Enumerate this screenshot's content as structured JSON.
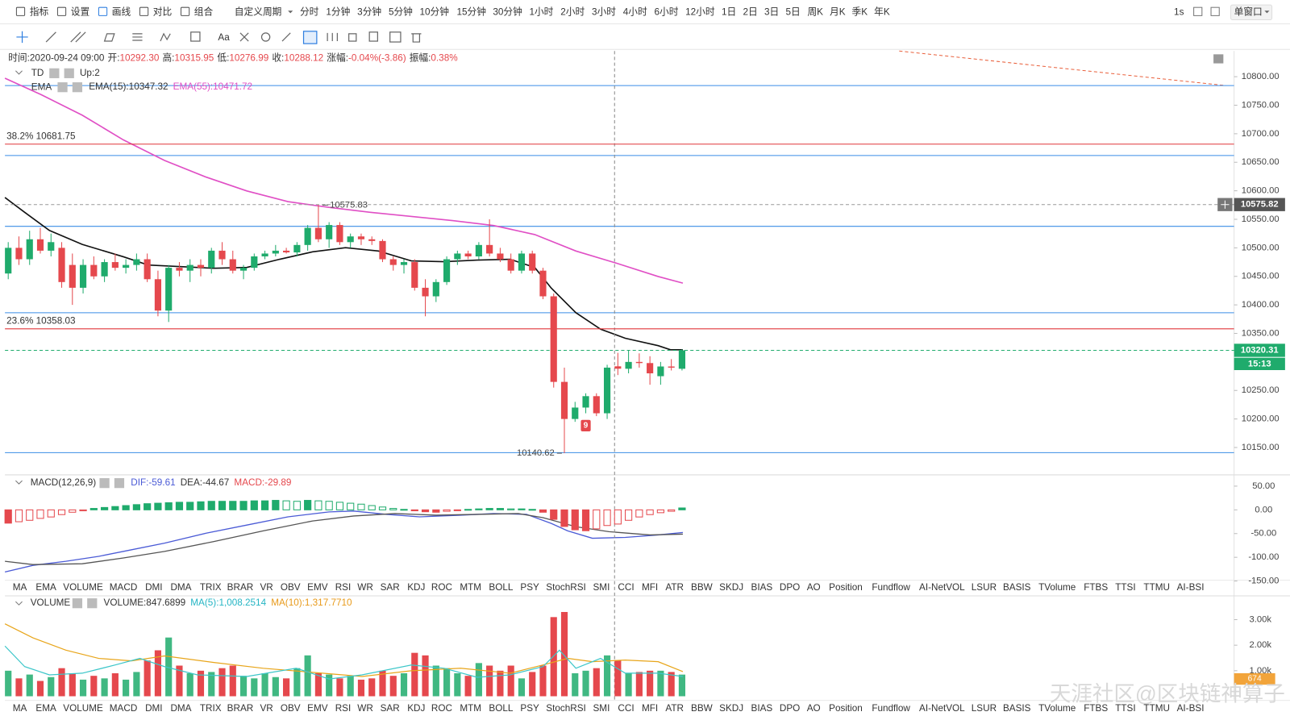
{
  "toolbar": {
    "left": [
      "指标",
      "设置",
      "画线",
      "对比",
      "组合"
    ],
    "period_menu": "自定义周期",
    "periods": [
      "分时",
      "1分钟",
      "3分钟",
      "5分钟",
      "10分钟",
      "15分钟",
      "30分钟",
      "1小时",
      "2小时",
      "3小时",
      "4小时",
      "6小时",
      "12小时",
      "1日",
      "2日",
      "3日",
      "5日",
      "周K",
      "月K",
      "季K",
      "年K"
    ],
    "active_period": 7,
    "right": [
      "1s",
      "单窗口"
    ]
  },
  "drawing_tools": {
    "text_tool": "Aa"
  },
  "info": [
    {
      "label": "时间:",
      "value": "2020-09-24 09:00"
    },
    {
      "label": "开:",
      "value": "10292.30"
    },
    {
      "label": "高:",
      "value": "10315.95"
    },
    {
      "label": "低:",
      "value": "10276.99"
    },
    {
      "label": "收:",
      "value": "10288.12"
    },
    {
      "label": "涨幅:",
      "value": "-0.04%(-3.86)"
    },
    {
      "label": "振幅:",
      "value": "0.38%"
    }
  ],
  "td_legend": {
    "name": "TD",
    "value": "Up:2"
  },
  "ema_legend": {
    "name": "EMA",
    "ema15": "EMA(15):10347.32",
    "ema55": "EMA(55):10471.72"
  },
  "price_chart": {
    "type": "candlestick",
    "ylim": [
      10115,
      10845
    ],
    "yticks": [
      {
        "value": 10150,
        "label": "10150.00"
      },
      {
        "value": 10200,
        "label": "10200.00"
      },
      {
        "value": 10250,
        "label": "10250.00"
      },
      {
        "value": 10300,
        "label": "10300.00"
      },
      {
        "value": 10350,
        "label": "10350.00"
      },
      {
        "value": 10400,
        "label": "10400.00"
      },
      {
        "value": 10450,
        "label": "10450.00"
      },
      {
        "value": 10500,
        "label": "10500.00"
      },
      {
        "value": 10550,
        "label": "10550.00"
      },
      {
        "value": 10600,
        "label": "10600.00"
      },
      {
        "value": 10650,
        "label": "10650.00"
      },
      {
        "value": 10700,
        "label": "10700.00"
      },
      {
        "value": 10750,
        "label": "10750.00"
      },
      {
        "value": 10800,
        "label": "10800.00"
      }
    ],
    "open": [
      10455,
      10500,
      10480,
      10515,
      10495,
      10500,
      10470,
      10430,
      10470,
      10450,
      10475,
      10465,
      10470,
      10480,
      10445,
      10390,
      10465,
      10460,
      10470,
      10465,
      10495,
      10480,
      10460,
      10465,
      10485,
      10490,
      10495,
      10492,
      10505,
      10535,
      10515,
      10540,
      10510,
      10520,
      10515,
      10512,
      10480,
      10470,
      10475,
      10430,
      10415,
      10440,
      10480,
      10490,
      10485,
      10505,
      10490,
      10480,
      10460,
      10490,
      10460,
      10415,
      10265,
      10200,
      10220,
      10240,
      10210,
      10292.3,
      10288,
      10300,
      10298,
      10275,
      10292,
      10288
    ],
    "high": [
      10510,
      10520,
      10530,
      10535,
      10525,
      10510,
      10490,
      10480,
      10485,
      10480,
      10490,
      10480,
      10490,
      10490,
      10460,
      10470,
      10475,
      10480,
      10480,
      10500,
      10510,
      10495,
      10470,
      10490,
      10495,
      10505,
      10500,
      10510,
      10540,
      10575,
      10545,
      10545,
      10525,
      10525,
      10520,
      10515,
      10485,
      10480,
      10480,
      10445,
      10445,
      10485,
      10495,
      10495,
      10510,
      10550,
      10500,
      10490,
      10495,
      10495,
      10465,
      10420,
      10290,
      10230,
      10245,
      10245,
      10295,
      10315.95,
      10320,
      10315,
      10310,
      10300,
      10305,
      10322
    ],
    "low": [
      10445,
      10470,
      10470,
      10490,
      10485,
      10430,
      10400,
      10420,
      10445,
      10440,
      10460,
      10455,
      10460,
      10440,
      10380,
      10370,
      10450,
      10440,
      10450,
      10455,
      10470,
      10455,
      10445,
      10460,
      10480,
      10485,
      10490,
      10485,
      10495,
      10510,
      10500,
      10505,
      10500,
      10505,
      10505,
      10475,
      10460,
      10455,
      10425,
      10380,
      10405,
      10435,
      10470,
      10480,
      10480,
      10485,
      10475,
      10455,
      10455,
      10455,
      10410,
      10255,
      10140,
      10195,
      10210,
      10205,
      10200,
      10276.99,
      10280,
      10290,
      10260,
      10260,
      10285,
      10285
    ],
    "close": [
      10500,
      10480,
      10515,
      10495,
      10510,
      10440,
      10430,
      10470,
      10450,
      10475,
      10465,
      10470,
      10480,
      10445,
      10390,
      10465,
      10460,
      10470,
      10465,
      10495,
      10480,
      10460,
      10465,
      10485,
      10490,
      10495,
      10492,
      10505,
      10535,
      10515,
      10540,
      10510,
      10520,
      10515,
      10512,
      10480,
      10470,
      10475,
      10430,
      10415,
      10440,
      10480,
      10490,
      10485,
      10505,
      10490,
      10480,
      10460,
      10490,
      10460,
      10415,
      10265,
      10200,
      10220,
      10240,
      10210,
      10290,
      10288.12,
      10300,
      10298,
      10280,
      10292,
      10290,
      10320.31
    ],
    "up_color": "#1fab6c",
    "down_color": "#e5484d",
    "fib_levels": [
      {
        "label": "38.2% 10681.75",
        "value": 10681.75
      },
      {
        "label": "23.6% 10358.03",
        "value": 10358.03
      }
    ],
    "markers": [
      {
        "label": "10575.82",
        "value": 10575.82
      },
      {
        "label": "10320.31",
        "value": 10320.31
      }
    ],
    "countdown": "15:13",
    "high_label": "10575.83",
    "low_label": "10140.62",
    "td_count": "9"
  },
  "macd_legend": {
    "name": "MACD(12,26,9)",
    "dif": "DIF:-59.61",
    "dea": "DEA:-44.67",
    "macd": "MACD:-29.89"
  },
  "macd_chart": {
    "type": "bar",
    "ylim": [
      -150,
      72
    ],
    "yticks": [
      {
        "value": -150,
        "label": "-150.00"
      },
      {
        "value": -100,
        "label": "-100.00"
      },
      {
        "value": -50,
        "label": "-50.00"
      },
      {
        "value": 0,
        "label": "0.00"
      },
      {
        "value": 50,
        "label": "50.00"
      }
    ],
    "values": [
      -28,
      -25,
      -22,
      -18,
      -15,
      -10,
      -5,
      -2,
      3,
      5,
      7,
      9,
      11,
      13,
      14,
      15,
      16,
      16,
      17,
      18,
      18,
      18,
      18,
      19,
      19,
      20,
      19,
      18,
      20,
      19,
      18,
      16,
      14,
      12,
      9,
      6,
      3,
      1,
      -2,
      -4,
      -5,
      -3,
      -1,
      1,
      2,
      3,
      3,
      2,
      2,
      1,
      -5,
      -20,
      -35,
      -42,
      -44,
      -40,
      -33,
      -29.89,
      -22,
      -15,
      -10,
      -6,
      -3,
      4
    ]
  },
  "indicator_tabs": [
    "MA",
    "EMA",
    "VOLUME",
    "MACD",
    "DMI",
    "DMA",
    "TRIX",
    "BRAR",
    "VR",
    "OBV",
    "EMV",
    "RSI",
    "WR",
    "SAR",
    "KDJ",
    "ROC",
    "MTM",
    "BOLL",
    "PSY",
    "StochRSI",
    "SMI",
    "CCI",
    "MFI",
    "ATR",
    "BBW",
    "SKDJ",
    "BIAS",
    "DPO",
    "AO",
    "Position",
    "Fundflow",
    "AI-NetVOL",
    "LSUR",
    "BASIS",
    "TVolume",
    "FTBS",
    "TTSI",
    "TTMU",
    "AI-BSI"
  ],
  "active_tab_top": 3,
  "active_tab_bottom": 2,
  "volume_legend": {
    "name": "VOLUME",
    "volume": "VOLUME:847.6899",
    "ma5": "MA(5):1,008.2514",
    "ma10": "MA(10):1,317.7710"
  },
  "volume_chart": {
    "type": "bar",
    "ylim": [
      0,
      3900
    ],
    "yticks": [
      {
        "value": 1000,
        "label": "1.00k"
      },
      {
        "value": 2000,
        "label": "2.00k"
      },
      {
        "value": 3000,
        "label": "3.00k"
      }
    ],
    "values": [
      1000,
      700,
      850,
      600,
      750,
      1100,
      900,
      650,
      800,
      700,
      900,
      650,
      950,
      1400,
      1800,
      2300,
      1200,
      900,
      1000,
      950,
      1100,
      1200,
      800,
      700,
      900,
      750,
      700,
      1100,
      1600,
      900,
      850,
      700,
      800,
      650,
      700,
      1000,
      800,
      900,
      1700,
      1600,
      1200,
      1100,
      900,
      800,
      1300,
      1200,
      1000,
      1200,
      700,
      950,
      1200,
      3100,
      3300,
      900,
      1000,
      1100,
      1600,
      1400,
      900,
      950,
      1000,
      1000,
      950,
      848
    ],
    "ma_marker": "674"
  },
  "watermark": "天涯社区@区块链神算子"
}
